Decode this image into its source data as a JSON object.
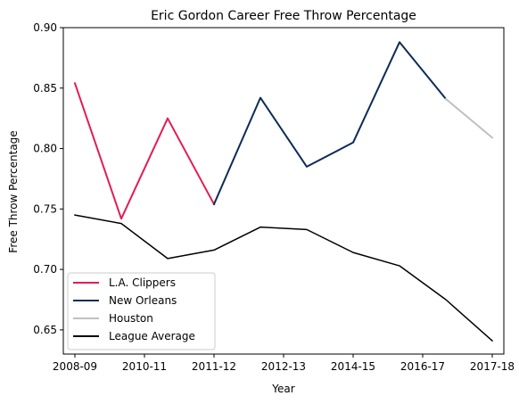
{
  "chart_data": {
    "type": "line",
    "title": "Eric Gordon Career Free Throw Percentage",
    "xlabel": "Year",
    "ylabel": "Free Throw Percentage",
    "ylim": [
      0.63,
      0.9
    ],
    "xlim": [
      -0.25,
      9.25
    ],
    "x_tick_labels": [
      "2008-09",
      "2010-11",
      "2011-12",
      "2012-13",
      "2014-15",
      "2016-17",
      "2017-18"
    ],
    "x_tick_positions": [
      0,
      1.5,
      3,
      4.5,
      6,
      7.5,
      9
    ],
    "y_ticks": [
      0.65,
      0.7,
      0.75,
      0.8,
      0.85,
      0.9
    ],
    "y_tick_labels": [
      "0.65",
      "0.70",
      "0.75",
      "0.80",
      "0.85",
      "0.90"
    ],
    "grid": false,
    "legend_placement": "lower-left",
    "series": [
      {
        "name": "L.A. Clippers",
        "color": "#e31c51",
        "width": 2,
        "points": [
          [
            0,
            0.854
          ],
          [
            1,
            0.742
          ],
          [
            2,
            0.825
          ],
          [
            3,
            0.754
          ]
        ]
      },
      {
        "name": "New Orleans",
        "color": "#0c2c56",
        "width": 2,
        "points": [
          [
            3,
            0.754
          ],
          [
            4,
            0.842
          ],
          [
            5,
            0.785
          ],
          [
            6,
            0.805
          ],
          [
            7,
            0.888
          ],
          [
            8,
            0.841
          ]
        ]
      },
      {
        "name": "Houston",
        "color": "#c0c0c0",
        "width": 2,
        "points": [
          [
            8,
            0.841
          ],
          [
            9,
            0.809
          ]
        ]
      },
      {
        "name": "League Average",
        "color": "#000000",
        "width": 1.5,
        "points": [
          [
            0,
            0.745
          ],
          [
            1,
            0.738
          ],
          [
            2,
            0.709
          ],
          [
            3,
            0.716
          ],
          [
            4,
            0.735
          ],
          [
            5,
            0.733
          ],
          [
            6,
            0.714
          ],
          [
            7,
            0.703
          ],
          [
            8,
            0.675
          ],
          [
            9,
            0.641
          ]
        ]
      }
    ]
  }
}
